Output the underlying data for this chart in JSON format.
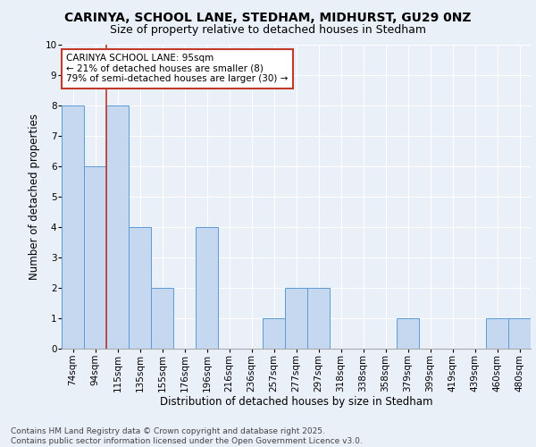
{
  "title1": "CARINYA, SCHOOL LANE, STEDHAM, MIDHURST, GU29 0NZ",
  "title2": "Size of property relative to detached houses in Stedham",
  "xlabel": "Distribution of detached houses by size in Stedham",
  "ylabel": "Number of detached properties",
  "footer1": "Contains HM Land Registry data © Crown copyright and database right 2025.",
  "footer2": "Contains public sector information licensed under the Open Government Licence v3.0.",
  "bins": [
    "74sqm",
    "94sqm",
    "115sqm",
    "135sqm",
    "155sqm",
    "176sqm",
    "196sqm",
    "216sqm",
    "236sqm",
    "257sqm",
    "277sqm",
    "297sqm",
    "318sqm",
    "338sqm",
    "358sqm",
    "379sqm",
    "399sqm",
    "419sqm",
    "439sqm",
    "460sqm",
    "480sqm"
  ],
  "counts": [
    8,
    6,
    8,
    4,
    2,
    0,
    4,
    0,
    0,
    1,
    2,
    2,
    0,
    0,
    0,
    1,
    0,
    0,
    0,
    1,
    1
  ],
  "bar_color": "#c5d8f0",
  "bar_edge_color": "#5b9bd5",
  "vline_color": "#c0392b",
  "annotation_text": "CARINYA SCHOOL LANE: 95sqm\n← 21% of detached houses are smaller (8)\n79% of semi-detached houses are larger (30) →",
  "annotation_box_color": "white",
  "annotation_box_edge": "#c0392b",
  "ylim": [
    0,
    10
  ],
  "yticks": [
    0,
    1,
    2,
    3,
    4,
    5,
    6,
    7,
    8,
    9,
    10
  ],
  "bg_color": "#eaf0f8",
  "grid_color": "#ffffff",
  "title_fontsize": 10,
  "subtitle_fontsize": 9,
  "tick_fontsize": 7.5,
  "axis_label_fontsize": 8.5,
  "footer_fontsize": 6.5,
  "annot_fontsize": 7.5
}
